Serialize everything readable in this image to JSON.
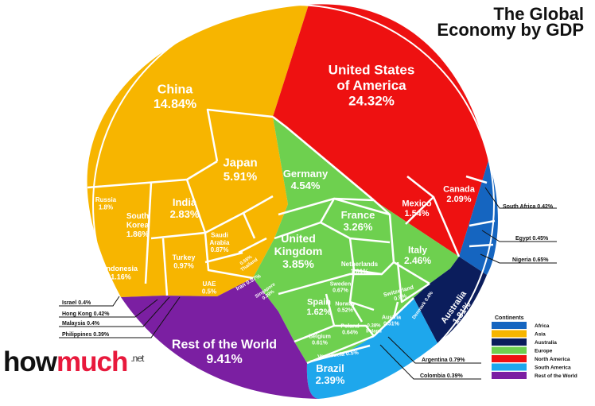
{
  "title_line1": "The Global",
  "title_line2": "Economy by GDP",
  "brand": {
    "main": "how",
    "accent": "much",
    "suffix": ".net"
  },
  "legend": {
    "title": "Continents",
    "items": [
      {
        "label": "Africa",
        "color": "#1565c0"
      },
      {
        "label": "Asia",
        "color": "#f7b500"
      },
      {
        "label": "Australia",
        "color": "#0b1d5c"
      },
      {
        "label": "Europe",
        "color": "#6ed04f"
      },
      {
        "label": "North America",
        "color": "#ee1111"
      },
      {
        "label": "South America",
        "color": "#1ea7ec"
      },
      {
        "label": "Rest of the World",
        "color": "#7b1fa2"
      }
    ]
  },
  "chart_data": {
    "type": "voronoi treemap",
    "title": "The Global Economy by GDP",
    "unit": "% of world GDP",
    "series": [
      {
        "name": "North America",
        "values": [
          {
            "label": "United States of America",
            "value": 24.32
          },
          {
            "label": "Mexico",
            "value": 1.54
          },
          {
            "label": "Canada",
            "value": 2.09
          }
        ]
      },
      {
        "name": "Asia",
        "values": [
          {
            "label": "China",
            "value": 14.84
          },
          {
            "label": "Japan",
            "value": 5.91
          },
          {
            "label": "India",
            "value": 2.83
          },
          {
            "label": "South Korea",
            "value": 1.86
          },
          {
            "label": "Russia",
            "value": 1.8
          },
          {
            "label": "Indonesia",
            "value": 1.16
          },
          {
            "label": "Turkey",
            "value": 0.97
          },
          {
            "label": "Saudi Arabia",
            "value": 0.87
          },
          {
            "label": "UAE",
            "value": 0.5
          },
          {
            "label": "Thailand",
            "value": 0.55
          },
          {
            "label": "Iran",
            "value": 0.57
          },
          {
            "label": "Singapore",
            "value": 0.39
          },
          {
            "label": "Israel",
            "value": 0.4
          },
          {
            "label": "Hong Kong",
            "value": 0.42
          },
          {
            "label": "Malaysia",
            "value": 0.4
          },
          {
            "label": "Philippines",
            "value": 0.39
          }
        ]
      },
      {
        "name": "Europe",
        "values": [
          {
            "label": "Germany",
            "value": 4.54
          },
          {
            "label": "France",
            "value": 3.26
          },
          {
            "label": "United Kingdom",
            "value": 3.85
          },
          {
            "label": "Italy",
            "value": 2.46
          },
          {
            "label": "Spain",
            "value": 1.62
          },
          {
            "label": "Netherlands",
            "value": 1.01
          },
          {
            "label": "Sweden",
            "value": 0.67
          },
          {
            "label": "Switzerland",
            "value": 0.9
          },
          {
            "label": "Norway",
            "value": 0.52
          },
          {
            "label": "Poland",
            "value": 0.64
          },
          {
            "label": "Belgium",
            "value": 0.61
          },
          {
            "label": "Austria",
            "value": 0.51
          },
          {
            "label": "Ireland",
            "value": 0.38
          },
          {
            "label": "Denmark",
            "value": 0.4
          }
        ]
      },
      {
        "name": "Australia",
        "values": [
          {
            "label": "Australia",
            "value": 1.81
          }
        ]
      },
      {
        "name": "Africa",
        "values": [
          {
            "label": "South Africa",
            "value": 0.42
          },
          {
            "label": "Egypt",
            "value": 0.45
          },
          {
            "label": "Nigeria",
            "value": 0.65
          }
        ]
      },
      {
        "name": "South America",
        "values": [
          {
            "label": "Brazil",
            "value": 2.39
          },
          {
            "label": "Venezuela",
            "value": 0.5
          },
          {
            "label": "Argentina",
            "value": 0.79
          },
          {
            "label": "Colombia",
            "value": 0.39
          }
        ]
      },
      {
        "name": "Rest of the World",
        "values": [
          {
            "label": "Rest of the World",
            "value": 9.41
          }
        ]
      }
    ],
    "cell_labels": [
      {
        "name": "United States of America",
        "lines": [
          "United States",
          "of America",
          "24.32%"
        ]
      },
      {
        "name": "China",
        "lines": [
          "China",
          "14.84%"
        ]
      },
      {
        "name": "Japan",
        "lines": [
          "Japan",
          "5.91%"
        ]
      },
      {
        "name": "Germany",
        "lines": [
          "Germany",
          "4.54%"
        ]
      },
      {
        "name": "France",
        "lines": [
          "France",
          "3.26%"
        ]
      },
      {
        "name": "United Kingdom",
        "lines": [
          "United",
          "Kingdom",
          "3.85%"
        ]
      },
      {
        "name": "India",
        "lines": [
          "India",
          "2.83%"
        ]
      },
      {
        "name": "Italy",
        "lines": [
          "Italy",
          "2.46%"
        ]
      },
      {
        "name": "Canada",
        "lines": [
          "Canada",
          "2.09%"
        ]
      },
      {
        "name": "Mexico",
        "lines": [
          "Mexico",
          "1.54%"
        ]
      },
      {
        "name": "Rest of the World",
        "lines": [
          "Rest of the World",
          "9.41%"
        ]
      },
      {
        "name": "Brazil",
        "lines": [
          "Brazil",
          "2.39%"
        ]
      },
      {
        "name": "Australia",
        "lines": [
          "Australia",
          "1.81%"
        ]
      },
      {
        "name": "South Korea",
        "lines": [
          "South",
          "Korea",
          "1.86%"
        ]
      },
      {
        "name": "Russia",
        "lines": [
          "Russia",
          "1.8%"
        ]
      },
      {
        "name": "Spain",
        "lines": [
          "Spain",
          "1.62%"
        ]
      },
      {
        "name": "Indonesia",
        "lines": [
          "Indonesia",
          "1.16%"
        ]
      },
      {
        "name": "Netherlands",
        "lines": [
          "Netherlands",
          "1.01%"
        ]
      },
      {
        "name": "Turkey",
        "lines": [
          "Turkey",
          "0.97%"
        ]
      },
      {
        "name": "Saudi Arabia",
        "lines": [
          "Saudi",
          "Arabia",
          "0.87%"
        ]
      },
      {
        "name": "Switzerland",
        "lines": [
          "Switzerland",
          "0.9%"
        ]
      },
      {
        "name": "Sweden",
        "lines": [
          "Sweden",
          "0.67%"
        ]
      },
      {
        "name": "Norway",
        "lines": [
          "Norway",
          "0.52%"
        ]
      },
      {
        "name": "Poland",
        "lines": [
          "Poland",
          "0.64%"
        ]
      },
      {
        "name": "Austria",
        "lines": [
          "Austria",
          "0.51%"
        ]
      },
      {
        "name": "Belgium",
        "lines": [
          "Belgium",
          "0.61%"
        ]
      },
      {
        "name": "Ireland",
        "lines": [
          "0.38%",
          "Ireland"
        ]
      },
      {
        "name": "Venezuela",
        "lines": [
          "Venezuela 0.5%"
        ]
      },
      {
        "name": "UAE",
        "lines": [
          "UAE",
          "0.5%"
        ]
      },
      {
        "name": "Thailand",
        "lines": [
          "0.55%",
          "Thailand"
        ]
      },
      {
        "name": "Iran",
        "lines": [
          "Iran 0.57%"
        ]
      },
      {
        "name": "Singapore",
        "lines": [
          "Singapore",
          "0.39%"
        ]
      },
      {
        "name": "Denmark",
        "lines": [
          "Denmark 0.4%"
        ]
      }
    ],
    "callouts": [
      {
        "name": "South Africa",
        "text": "South Africa 0.42%"
      },
      {
        "name": "Egypt",
        "text": "Egypt 0.45%"
      },
      {
        "name": "Nigeria",
        "text": "Nigeria 0.65%"
      },
      {
        "name": "Argentina",
        "text": "Argentina 0.79%"
      },
      {
        "name": "Colombia",
        "text": "Colombia 0.39%"
      },
      {
        "name": "Israel",
        "text": "Israel 0.4%"
      },
      {
        "name": "Hong Kong",
        "text": "Hong Kong 0.42%"
      },
      {
        "name": "Malaysia",
        "text": "Malaysia 0.4%"
      },
      {
        "name": "Philippines",
        "text": "Philippines 0.39%"
      }
    ]
  }
}
